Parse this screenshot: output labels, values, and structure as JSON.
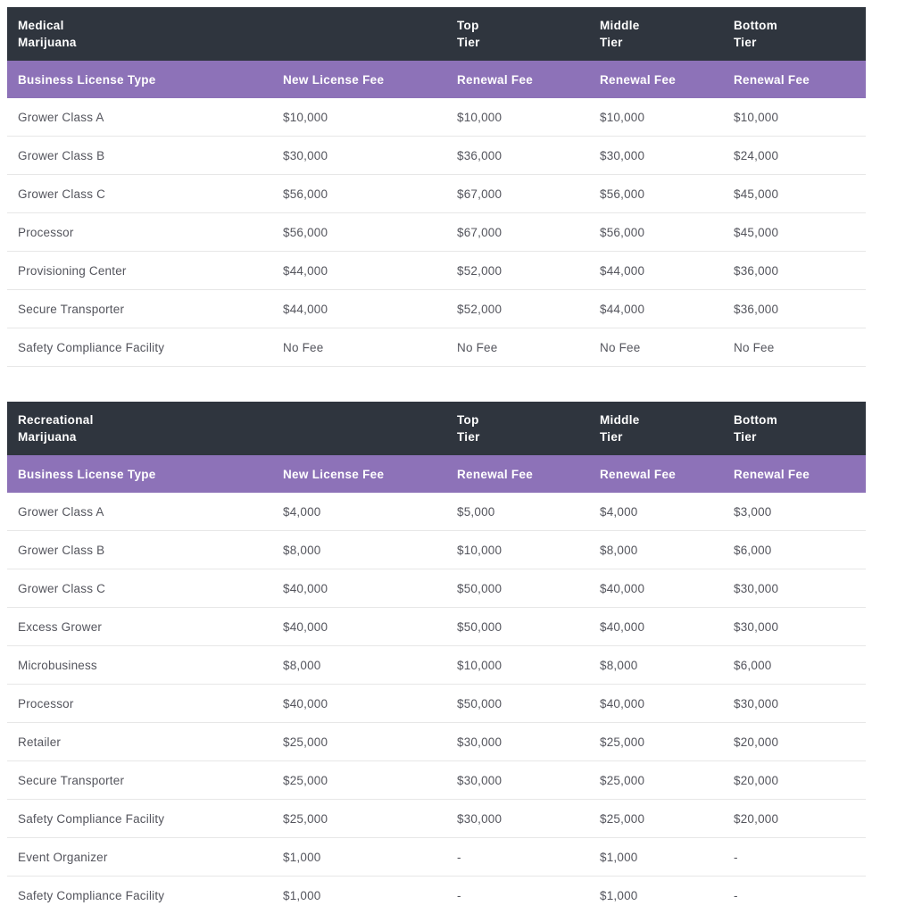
{
  "colors": {
    "header_dark_bg": "#2f353e",
    "header_purple_bg": "#8d72b8",
    "header_text": "#ffffff",
    "body_text": "#54555d",
    "row_border": "#e7e7e7",
    "page_bg": "#ffffff"
  },
  "tables": [
    {
      "title_line1": "Medical",
      "title_line2": "Marijuana",
      "tier_headers": [
        {
          "line1": "Top",
          "line2": "Tier"
        },
        {
          "line1": "Middle",
          "line2": "Tier"
        },
        {
          "line1": "Bottom",
          "line2": "Tier"
        }
      ],
      "column_headers": [
        "Business License Type",
        "New License Fee",
        "Renewal Fee",
        "Renewal Fee",
        "Renewal Fee"
      ],
      "rows": [
        [
          "Grower Class A",
          "$10,000",
          "$10,000",
          "$10,000",
          "$10,000"
        ],
        [
          "Grower Class B",
          "$30,000",
          "$36,000",
          "$30,000",
          "$24,000"
        ],
        [
          "Grower Class C",
          "$56,000",
          "$67,000",
          "$56,000",
          "$45,000"
        ],
        [
          "Processor",
          "$56,000",
          "$67,000",
          "$56,000",
          "$45,000"
        ],
        [
          "Provisioning Center",
          "$44,000",
          "$52,000",
          "$44,000",
          "$36,000"
        ],
        [
          "Secure Transporter",
          "$44,000",
          "$52,000",
          "$44,000",
          "$36,000"
        ],
        [
          "Safety Compliance Facility",
          "No Fee",
          "No Fee",
          "No Fee",
          "No Fee"
        ]
      ]
    },
    {
      "title_line1": "Recreational",
      "title_line2": "Marijuana",
      "tier_headers": [
        {
          "line1": "Top",
          "line2": "Tier"
        },
        {
          "line1": "Middle",
          "line2": "Tier"
        },
        {
          "line1": "Bottom",
          "line2": "Tier"
        }
      ],
      "column_headers": [
        "Business License Type",
        "New License Fee",
        "Renewal Fee",
        "Renewal Fee",
        "Renewal Fee"
      ],
      "rows": [
        [
          "Grower Class A",
          "$4,000",
          "$5,000",
          "$4,000",
          "$3,000"
        ],
        [
          "Grower Class B",
          "$8,000",
          "$10,000",
          "$8,000",
          "$6,000"
        ],
        [
          "Grower Class C",
          "$40,000",
          "$50,000",
          "$40,000",
          "$30,000"
        ],
        [
          "Excess Grower",
          "$40,000",
          "$50,000",
          "$40,000",
          "$30,000"
        ],
        [
          "Microbusiness",
          "$8,000",
          "$10,000",
          "$8,000",
          "$6,000"
        ],
        [
          "Processor",
          "$40,000",
          "$50,000",
          "$40,000",
          "$30,000"
        ],
        [
          "Retailer",
          "$25,000",
          "$30,000",
          "$25,000",
          "$20,000"
        ],
        [
          "Secure Transporter",
          "$25,000",
          "$30,000",
          "$25,000",
          "$20,000"
        ],
        [
          "Safety Compliance Facility",
          "$25,000",
          "$30,000",
          "$25,000",
          "$20,000"
        ],
        [
          "Event Organizer",
          "$1,000",
          "-",
          "$1,000",
          "-"
        ],
        [
          "Safety Compliance Facility",
          "$1,000",
          "-",
          "$1,000",
          "-"
        ]
      ]
    }
  ]
}
